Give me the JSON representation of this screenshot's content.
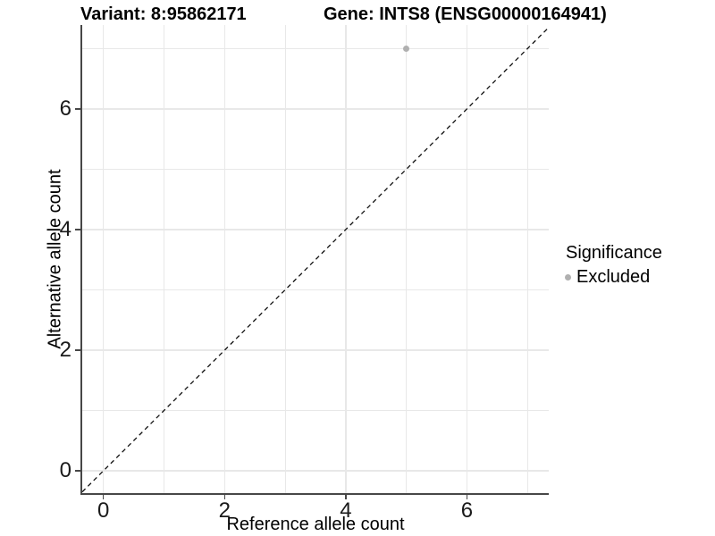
{
  "chart_data": {
    "type": "scatter",
    "titles": [
      "Variant: 8:95862171",
      "Gene: INTS8 (ENSG00000164941)"
    ],
    "xlabel": "Reference allele count",
    "ylabel": "Alternative allele count",
    "xlim": [
      -0.35,
      7.35
    ],
    "ylim": [
      -0.37,
      7.39
    ],
    "xticks": [
      0,
      2,
      4,
      6
    ],
    "yticks": [
      0,
      2,
      4,
      6
    ],
    "minor_gridlines_x": [
      1,
      3,
      5,
      7
    ],
    "minor_gridlines_y": [
      1,
      3,
      5,
      7
    ],
    "grid": true,
    "series": [
      {
        "name": "Excluded",
        "color": "#b0b0b0",
        "points": [
          {
            "x": 5,
            "y": 7
          }
        ]
      }
    ],
    "reference_line": {
      "slope": 1,
      "intercept": 0,
      "style": "dashed",
      "color": "#111111"
    },
    "legend": {
      "title": "Significance",
      "position": "right",
      "items": [
        {
          "label": "Excluded",
          "color": "#b0b0b0"
        }
      ]
    }
  },
  "style": {
    "grid_color": "#e8e8e8",
    "axis_color": "#474747",
    "tick_label_color": "#1a1a1a",
    "background": "#ffffff"
  }
}
